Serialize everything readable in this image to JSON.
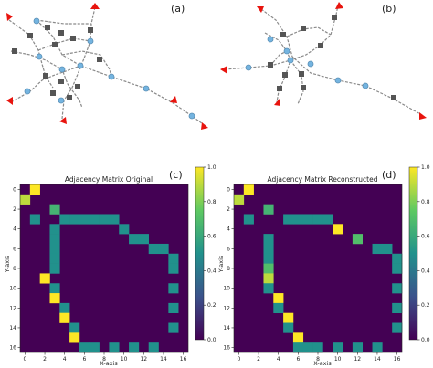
{
  "panels": {
    "a": {
      "label": "(a)"
    },
    "b": {
      "label": "(b)"
    },
    "c": {
      "label": "(c)",
      "title": "Adjacency Matrix Original"
    },
    "d": {
      "label": "(d)",
      "title": "Adjacency Matrix Reconstructed"
    }
  },
  "axes": {
    "xlabel": "X-axis",
    "ylabel": "Y-axis"
  },
  "colors": {
    "zero": "#440154",
    "low": "#3b528b",
    "mid": "#21918c",
    "mid2": "#35b779",
    "high": "#fde725",
    "edge": "#8a8a8a",
    "endpoint_marker": "#e8140e",
    "square_node": "#555555",
    "circle_node": "#74b4e0"
  },
  "chart_data": [
    {
      "type": "heatmap",
      "title": "Adjacency Matrix Original",
      "xlabel": "X-axis",
      "ylabel": "Y-axis",
      "size": 17,
      "x_ticks": [
        0,
        2,
        4,
        6,
        8,
        10,
        12,
        14,
        16
      ],
      "y_ticks": [
        0,
        2,
        4,
        6,
        8,
        10,
        12,
        14,
        16
      ],
      "colorbar_ticks": [
        "0.0",
        "0.2",
        "0.4",
        "0.6",
        "0.8",
        "1.0"
      ],
      "vrange": [
        0,
        1
      ],
      "cells": [
        {
          "r": 0,
          "c": 1,
          "v": 1.0
        },
        {
          "r": 1,
          "c": 0,
          "v": 0.9
        },
        {
          "r": 2,
          "c": 3,
          "v": 0.65
        },
        {
          "r": 3,
          "c": 1,
          "v": 0.5
        },
        {
          "r": 3,
          "c": 4,
          "v": 0.5
        },
        {
          "r": 3,
          "c": 5,
          "v": 0.5
        },
        {
          "r": 3,
          "c": 6,
          "v": 0.5
        },
        {
          "r": 3,
          "c": 7,
          "v": 0.5
        },
        {
          "r": 3,
          "c": 8,
          "v": 0.5
        },
        {
          "r": 3,
          "c": 9,
          "v": 0.5
        },
        {
          "r": 4,
          "c": 3,
          "v": 0.5
        },
        {
          "r": 4,
          "c": 10,
          "v": 0.5
        },
        {
          "r": 5,
          "c": 3,
          "v": 0.5
        },
        {
          "r": 5,
          "c": 11,
          "v": 0.5
        },
        {
          "r": 5,
          "c": 12,
          "v": 0.5
        },
        {
          "r": 6,
          "c": 3,
          "v": 0.5
        },
        {
          "r": 6,
          "c": 13,
          "v": 0.5
        },
        {
          "r": 6,
          "c": 14,
          "v": 0.5
        },
        {
          "r": 7,
          "c": 3,
          "v": 0.5
        },
        {
          "r": 7,
          "c": 15,
          "v": 0.5
        },
        {
          "r": 8,
          "c": 3,
          "v": 0.5
        },
        {
          "r": 8,
          "c": 15,
          "v": 0.5
        },
        {
          "r": 9,
          "c": 2,
          "v": 1.0
        },
        {
          "r": 10,
          "c": 3,
          "v": 0.5
        },
        {
          "r": 10,
          "c": 15,
          "v": 0.5
        },
        {
          "r": 11,
          "c": 3,
          "v": 1.0
        },
        {
          "r": 12,
          "c": 4,
          "v": 0.5
        },
        {
          "r": 12,
          "c": 15,
          "v": 0.5
        },
        {
          "r": 13,
          "c": 4,
          "v": 1.0
        },
        {
          "r": 14,
          "c": 5,
          "v": 0.5
        },
        {
          "r": 14,
          "c": 15,
          "v": 0.5
        },
        {
          "r": 15,
          "c": 5,
          "v": 1.0
        },
        {
          "r": 16,
          "c": 6,
          "v": 0.5
        },
        {
          "r": 16,
          "c": 7,
          "v": 0.5
        },
        {
          "r": 16,
          "c": 9,
          "v": 0.5
        },
        {
          "r": 16,
          "c": 11,
          "v": 0.5
        },
        {
          "r": 16,
          "c": 13,
          "v": 0.5
        }
      ]
    },
    {
      "type": "heatmap",
      "title": "Adjacency Matrix Reconstructed",
      "xlabel": "X-axis",
      "ylabel": "Y-axis",
      "size": 17,
      "x_ticks": [
        0,
        2,
        4,
        6,
        8,
        10,
        12,
        14,
        16
      ],
      "y_ticks": [
        0,
        2,
        4,
        6,
        8,
        10,
        12,
        14,
        16
      ],
      "colorbar_ticks": [
        "0.0",
        "0.2",
        "0.4",
        "0.6",
        "0.8",
        "1.0"
      ],
      "vrange": [
        0,
        1
      ],
      "cells": [
        {
          "r": 0,
          "c": 1,
          "v": 1.0
        },
        {
          "r": 1,
          "c": 0,
          "v": 0.9
        },
        {
          "r": 2,
          "c": 3,
          "v": 0.65
        },
        {
          "r": 3,
          "c": 1,
          "v": 0.5
        },
        {
          "r": 3,
          "c": 5,
          "v": 0.5
        },
        {
          "r": 3,
          "c": 6,
          "v": 0.5
        },
        {
          "r": 3,
          "c": 7,
          "v": 0.5
        },
        {
          "r": 3,
          "c": 8,
          "v": 0.5
        },
        {
          "r": 3,
          "c": 9,
          "v": 0.5
        },
        {
          "r": 4,
          "c": 10,
          "v": 1.0
        },
        {
          "r": 5,
          "c": 3,
          "v": 0.5
        },
        {
          "r": 5,
          "c": 12,
          "v": 0.7
        },
        {
          "r": 6,
          "c": 3,
          "v": 0.5
        },
        {
          "r": 6,
          "c": 14,
          "v": 0.5
        },
        {
          "r": 6,
          "c": 15,
          "v": 0.5
        },
        {
          "r": 7,
          "c": 3,
          "v": 0.5
        },
        {
          "r": 7,
          "c": 16,
          "v": 0.5
        },
        {
          "r": 8,
          "c": 3,
          "v": 0.7
        },
        {
          "r": 8,
          "c": 16,
          "v": 0.5
        },
        {
          "r": 9,
          "c": 3,
          "v": 0.9
        },
        {
          "r": 10,
          "c": 3,
          "v": 0.5
        },
        {
          "r": 10,
          "c": 16,
          "v": 0.5
        },
        {
          "r": 11,
          "c": 4,
          "v": 1.0
        },
        {
          "r": 12,
          "c": 4,
          "v": 0.5
        },
        {
          "r": 12,
          "c": 16,
          "v": 0.5
        },
        {
          "r": 13,
          "c": 5,
          "v": 1.0
        },
        {
          "r": 14,
          "c": 5,
          "v": 0.5
        },
        {
          "r": 14,
          "c": 16,
          "v": 0.5
        },
        {
          "r": 15,
          "c": 6,
          "v": 1.0
        },
        {
          "r": 16,
          "c": 6,
          "v": 0.5
        },
        {
          "r": 16,
          "c": 7,
          "v": 0.5
        },
        {
          "r": 16,
          "c": 8,
          "v": 0.5
        },
        {
          "r": 16,
          "c": 10,
          "v": 0.5
        },
        {
          "r": 16,
          "c": 12,
          "v": 0.5
        },
        {
          "r": 16,
          "c": 14,
          "v": 0.5
        }
      ]
    }
  ]
}
